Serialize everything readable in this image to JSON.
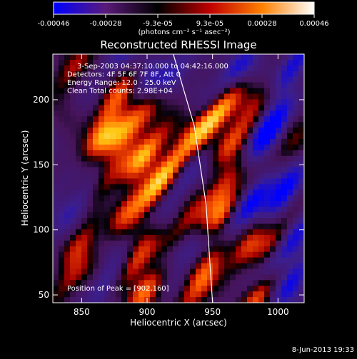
{
  "chart_data": {
    "type": "heatmap",
    "title": "Reconstructed RHESSI Image",
    "xlabel": "Heliocentric X (arcsec)",
    "ylabel": "Heliocentric Y (arcsec)",
    "xlim": [
      828,
      1020
    ],
    "ylim": [
      44,
      235
    ],
    "x_ticks": [
      850,
      900,
      950,
      1000
    ],
    "y_ticks": [
      50,
      100,
      150,
      200
    ],
    "info_lines": [
      "3-Sep-2003 04:37:10.000 to 04:42:16.000",
      "Detectors: 4F 5F 6F 7F 8F, Att 0",
      "Energy Range: 12.0 - 25.0 keV",
      "Clean     Total counts: 2.98E+04"
    ],
    "peak_label": "Position of Peak = [902,160]",
    "peak_position": [
      902,
      160
    ],
    "limb_line": [
      [
        920,
        235
      ],
      [
        936,
        180
      ],
      [
        945,
        120
      ],
      [
        950,
        44
      ]
    ],
    "colorbar": {
      "min": -0.00046,
      "max": 0.00046,
      "tick_labels": [
        "-0.00046",
        "-0.00028",
        "-9.3e-05",
        "9.3e-05",
        "0.00028",
        "0.00046"
      ],
      "units_line": "(photons cm⁻² s⁻¹ asec⁻²)",
      "colors": [
        "#0000ff",
        "#5a1a7a",
        "#000000",
        "#c00000",
        "#ff8000",
        "#ffffff"
      ]
    },
    "features": [
      {
        "x": 845,
        "y": 225,
        "v": 0.5
      },
      {
        "x": 875,
        "y": 200,
        "v": 0.7
      },
      {
        "x": 880,
        "y": 175,
        "v": 0.65
      },
      {
        "x": 898,
        "y": 188,
        "v": 0.55
      },
      {
        "x": 862,
        "y": 168,
        "v": 0.95
      },
      {
        "x": 870,
        "y": 140,
        "v": 0.6
      },
      {
        "x": 900,
        "y": 160,
        "v": 1.0
      },
      {
        "x": 905,
        "y": 130,
        "v": 0.75
      },
      {
        "x": 918,
        "y": 150,
        "v": 0.6
      },
      {
        "x": 925,
        "y": 100,
        "v": 0.55
      },
      {
        "x": 955,
        "y": 190,
        "v": 0.95
      },
      {
        "x": 965,
        "y": 168,
        "v": 0.7
      },
      {
        "x": 940,
        "y": 175,
        "v": 0.5
      },
      {
        "x": 960,
        "y": 135,
        "v": 0.8
      },
      {
        "x": 955,
        "y": 110,
        "v": 0.95
      },
      {
        "x": 975,
        "y": 85,
        "v": 0.6
      },
      {
        "x": 950,
        "y": 78,
        "v": 0.5
      },
      {
        "x": 890,
        "y": 75,
        "v": 0.75
      },
      {
        "x": 900,
        "y": 55,
        "v": 0.85
      },
      {
        "x": 880,
        "y": 110,
        "v": 0.7
      },
      {
        "x": 850,
        "y": 90,
        "v": 0.55
      },
      {
        "x": 840,
        "y": 60,
        "v": 0.5
      },
      {
        "x": 985,
        "y": 50,
        "v": 0.85
      },
      {
        "x": 1000,
        "y": 95,
        "v": 0.55
      },
      {
        "x": 935,
        "y": 50,
        "v": 0.6
      },
      {
        "x": 990,
        "y": 205,
        "v": 0.45
      },
      {
        "x": 1005,
        "y": 160,
        "v": 0.4
      },
      {
        "x": 1010,
        "y": 225,
        "v": -0.8
      },
      {
        "x": 995,
        "y": 180,
        "v": -0.85
      },
      {
        "x": 1005,
        "y": 130,
        "v": -0.75
      },
      {
        "x": 1010,
        "y": 60,
        "v": -0.6
      },
      {
        "x": 985,
        "y": 130,
        "v": -0.55
      },
      {
        "x": 995,
        "y": 70,
        "v": -0.5
      },
      {
        "x": 968,
        "y": 222,
        "v": -0.6
      },
      {
        "x": 920,
        "y": 220,
        "v": -0.5
      },
      {
        "x": 848,
        "y": 150,
        "v": -0.4
      },
      {
        "x": 848,
        "y": 120,
        "v": -0.5
      },
      {
        "x": 868,
        "y": 100,
        "v": -0.3
      },
      {
        "x": 870,
        "y": 60,
        "v": -0.5
      },
      {
        "x": 930,
        "y": 140,
        "v": -0.45
      },
      {
        "x": 940,
        "y": 90,
        "v": -0.5
      },
      {
        "x": 915,
        "y": 78,
        "v": -0.35
      },
      {
        "x": 975,
        "y": 150,
        "v": -0.35
      },
      {
        "x": 972,
        "y": 110,
        "v": -0.4
      },
      {
        "x": 900,
        "y": 215,
        "v": -0.3
      },
      {
        "x": 880,
        "y": 235,
        "v": -0.4
      },
      {
        "x": 1015,
        "y": 100,
        "v": -0.55
      }
    ]
  },
  "footer": {
    "timestamp": "8-Jun-2013 19:33"
  }
}
